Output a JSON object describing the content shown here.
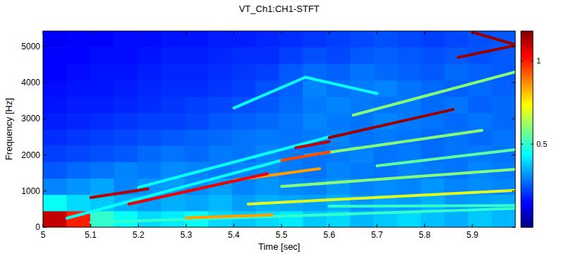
{
  "chart_data": {
    "type": "heatmap",
    "title": "VT_Ch1:CH1-STFT",
    "x_label": "Time [sec]",
    "y_label": "Frequency [Hz]",
    "xlim": [
      5,
      5.99
    ],
    "ylim": [
      0,
      5430
    ],
    "xticks": [
      5,
      5.1,
      5.2,
      5.3,
      5.4,
      5.5,
      5.6,
      5.7,
      5.8,
      5.9
    ],
    "yticks": [
      0,
      1000,
      2000,
      3000,
      4000,
      5000
    ],
    "color_range": [
      0,
      1.18
    ],
    "color_ticks": [
      0.5,
      1
    ],
    "cells": [
      [
        1.1,
        1.0,
        0.5,
        0.45,
        0.4,
        0.42,
        0.45,
        0.4,
        0.38,
        0.4,
        0.42,
        0.38,
        0.4,
        0.36,
        0.38,
        0.4,
        0.37,
        0.35,
        0.38,
        0.36
      ],
      [
        0.45,
        0.4,
        0.38,
        0.35,
        0.33,
        0.35,
        0.34,
        0.36,
        0.33,
        0.35,
        0.34,
        0.33,
        0.35,
        0.32,
        0.34,
        0.33,
        0.35,
        0.32,
        0.33,
        0.34
      ],
      [
        0.3,
        0.32,
        0.34,
        0.3,
        0.32,
        0.33,
        0.31,
        0.33,
        0.3,
        0.32,
        0.31,
        0.3,
        0.32,
        0.3,
        0.31,
        0.3,
        0.32,
        0.3,
        0.31,
        0.3
      ],
      [
        0.25,
        0.27,
        0.28,
        0.3,
        0.29,
        0.31,
        0.3,
        0.29,
        0.3,
        0.31,
        0.29,
        0.28,
        0.3,
        0.29,
        0.28,
        0.3,
        0.29,
        0.28,
        0.3,
        0.29
      ],
      [
        0.22,
        0.23,
        0.24,
        0.25,
        0.27,
        0.28,
        0.27,
        0.29,
        0.28,
        0.3,
        0.29,
        0.28,
        0.29,
        0.3,
        0.28,
        0.29,
        0.27,
        0.28,
        0.29,
        0.28
      ],
      [
        0.2,
        0.21,
        0.22,
        0.23,
        0.24,
        0.25,
        0.26,
        0.27,
        0.28,
        0.29,
        0.28,
        0.29,
        0.3,
        0.28,
        0.29,
        0.28,
        0.27,
        0.28,
        0.27,
        0.28
      ],
      [
        0.18,
        0.19,
        0.2,
        0.21,
        0.22,
        0.22,
        0.23,
        0.25,
        0.26,
        0.27,
        0.28,
        0.3,
        0.29,
        0.28,
        0.3,
        0.29,
        0.28,
        0.27,
        0.28,
        0.27
      ],
      [
        0.17,
        0.18,
        0.18,
        0.19,
        0.2,
        0.21,
        0.22,
        0.23,
        0.24,
        0.25,
        0.27,
        0.29,
        0.3,
        0.29,
        0.28,
        0.29,
        0.27,
        0.28,
        0.26,
        0.27
      ],
      [
        0.16,
        0.17,
        0.17,
        0.18,
        0.19,
        0.2,
        0.2,
        0.21,
        0.22,
        0.24,
        0.26,
        0.3,
        0.28,
        0.29,
        0.3,
        0.28,
        0.27,
        0.26,
        0.27,
        0.26
      ],
      [
        0.15,
        0.16,
        0.17,
        0.17,
        0.18,
        0.19,
        0.19,
        0.2,
        0.21,
        0.22,
        0.25,
        0.27,
        0.26,
        0.28,
        0.27,
        0.26,
        0.25,
        0.27,
        0.26,
        0.25
      ],
      [
        0.15,
        0.15,
        0.16,
        0.16,
        0.17,
        0.18,
        0.18,
        0.19,
        0.2,
        0.2,
        0.22,
        0.24,
        0.23,
        0.25,
        0.26,
        0.25,
        0.24,
        0.25,
        0.24,
        0.25
      ],
      [
        0.14,
        0.15,
        0.15,
        0.16,
        0.16,
        0.17,
        0.17,
        0.18,
        0.18,
        0.19,
        0.2,
        0.21,
        0.22,
        0.23,
        0.24,
        0.23,
        0.22,
        0.23,
        0.24,
        0.25
      ]
    ],
    "series": [
      {
        "x": [
          5.1,
          5.99
        ],
        "values": [
          130,
          520
        ],
        "level": 0.5
      },
      {
        "x": [
          5.05,
          5.5
        ],
        "values": [
          250,
          1850
        ],
        "level": 0.45
      },
      {
        "x": [
          5.2,
          5.6
        ],
        "values": [
          1100,
          2500
        ],
        "level": 0.45
      },
      {
        "x": [
          5.4,
          5.55
        ],
        "values": [
          3300,
          4150
        ],
        "level": 0.45
      },
      {
        "x": [
          5.55,
          5.7
        ],
        "values": [
          4150,
          3700
        ],
        "level": 0.45
      },
      {
        "x": [
          5.6,
          5.99
        ],
        "values": [
          580,
          600
        ],
        "level": 0.5
      },
      {
        "x": [
          5.7,
          5.99
        ],
        "values": [
          1700,
          2150
        ],
        "level": 0.55
      },
      {
        "x": [
          5.43,
          5.99
        ],
        "values": [
          640,
          1020
        ],
        "level": 0.7
      },
      {
        "x": [
          5.5,
          5.99
        ],
        "values": [
          1130,
          1600
        ],
        "level": 0.6
      },
      {
        "x": [
          5.55,
          5.92
        ],
        "values": [
          1980,
          2680
        ],
        "level": 0.6
      },
      {
        "x": [
          5.65,
          5.99
        ],
        "values": [
          3100,
          4300
        ],
        "level": 0.6
      },
      {
        "x": [
          5.3,
          5.48
        ],
        "values": [
          260,
          340
        ],
        "level": 0.85
      },
      {
        "x": [
          5.4,
          5.58
        ],
        "values": [
          1300,
          1620
        ],
        "level": 0.85
      },
      {
        "x": [
          5.5,
          5.6
        ],
        "values": [
          1850,
          2080
        ],
        "level": 0.95
      },
      {
        "x": [
          5.1,
          5.22
        ],
        "values": [
          820,
          1060
        ],
        "level": 1.12
      },
      {
        "x": [
          5.18,
          5.47
        ],
        "values": [
          640,
          1480
        ],
        "level": 1.05
      },
      {
        "x": [
          5.53,
          5.6
        ],
        "values": [
          2200,
          2370
        ],
        "level": 1.1
      },
      {
        "x": [
          5.6,
          5.86
        ],
        "values": [
          2480,
          3260
        ],
        "level": 1.15
      },
      {
        "x": [
          5.87,
          5.99
        ],
        "values": [
          4700,
          5030
        ],
        "level": 1.15
      },
      {
        "x": [
          5.9,
          5.99
        ],
        "values": [
          5400,
          5050
        ],
        "level": 1.15
      }
    ]
  }
}
